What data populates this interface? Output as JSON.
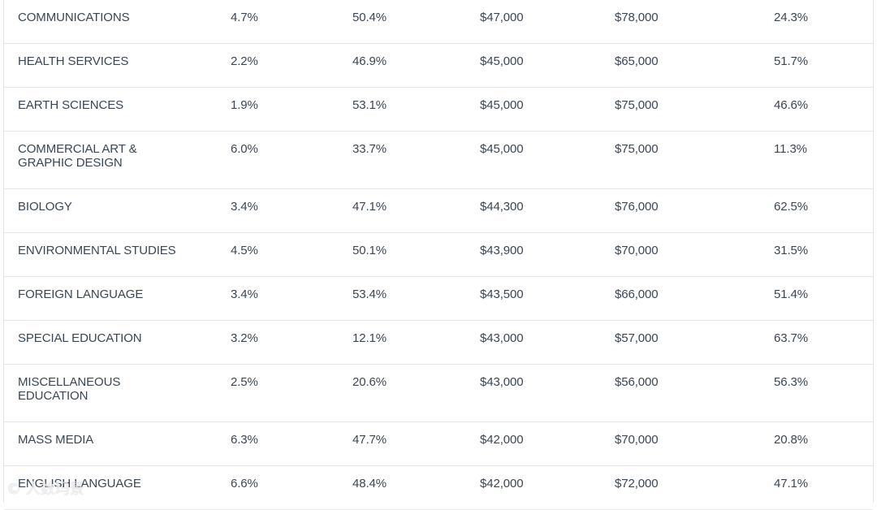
{
  "rows": [
    {
      "major": "COMMUNICATIONS",
      "c1": "4.7%",
      "c2": "50.4%",
      "c3": "$47,000",
      "c4": "$78,000",
      "c5": "24.3%",
      "lines": 1
    },
    {
      "major": "HEALTH SERVICES",
      "c1": "2.2%",
      "c2": "46.9%",
      "c3": "$45,000",
      "c4": "$65,000",
      "c5": "51.7%",
      "lines": 1
    },
    {
      "major": "EARTH SCIENCES",
      "c1": "1.9%",
      "c2": "53.1%",
      "c3": "$45,000",
      "c4": "$75,000",
      "c5": "46.6%",
      "lines": 1
    },
    {
      "major": "COMMERCIAL ART &\nGRAPHIC DESIGN",
      "c1": "6.0%",
      "c2": "33.7%",
      "c3": "$45,000",
      "c4": "$75,000",
      "c5": "11.3%",
      "lines": 2
    },
    {
      "major": "BIOLOGY",
      "c1": "3.4%",
      "c2": "47.1%",
      "c3": "$44,300",
      "c4": "$76,000",
      "c5": "62.5%",
      "lines": 1
    },
    {
      "major": "ENVIRONMENTAL STUDIES",
      "c1": "4.5%",
      "c2": "50.1%",
      "c3": "$43,900",
      "c4": "$70,000",
      "c5": "31.5%",
      "lines": 1
    },
    {
      "major": "FOREIGN LANGUAGE",
      "c1": "3.4%",
      "c2": "53.4%",
      "c3": "$43,500",
      "c4": "$66,000",
      "c5": "51.4%",
      "lines": 1
    },
    {
      "major": "SPECIAL EDUCATION",
      "c1": "3.2%",
      "c2": "12.1%",
      "c3": "$43,000",
      "c4": "$57,000",
      "c5": "63.7%",
      "lines": 1
    },
    {
      "major": "MISCELLANEOUS\nEDUCATION",
      "c1": "2.5%",
      "c2": "20.6%",
      "c3": "$43,000",
      "c4": "$56,000",
      "c5": "56.3%",
      "lines": 2
    },
    {
      "major": "MASS MEDIA",
      "c1": "6.3%",
      "c2": "47.7%",
      "c3": "$42,000",
      "c4": "$70,000",
      "c5": "20.8%",
      "lines": 1
    },
    {
      "major": "ENGLISH LANGUAGE",
      "c1": "6.6%",
      "c2": "48.4%",
      "c3": "$42,000",
      "c4": "$72,000",
      "c5": "47.1%",
      "lines": 1
    }
  ],
  "watermark": "© 人数玛景"
}
